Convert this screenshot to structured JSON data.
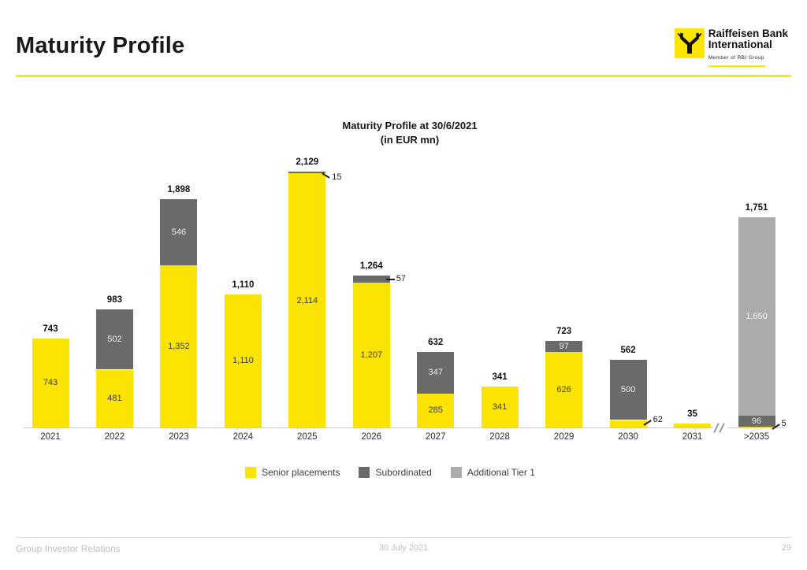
{
  "slide": {
    "title": "Maturity Profile",
    "footer": {
      "left": "Group Investor Relations",
      "center": "30 July 2021",
      "page": "29"
    }
  },
  "logo": {
    "name_line1": "Raiffeisen Bank",
    "name_line2": "International",
    "tagline": "Member of RBI Group"
  },
  "chart_data": {
    "type": "bar",
    "stacked": true,
    "title": "Maturity Profile at 30/6/2021",
    "subtitle": "(in EUR mn)",
    "unit": "EUR mn",
    "grid": false,
    "legend_position": "bottom",
    "ylim": [
      0,
      2129
    ],
    "categories": [
      "2021",
      "2022",
      "2023",
      "2024",
      "2025",
      "2026",
      "2027",
      "2028",
      "2029",
      "2030",
      "2031",
      ">2035"
    ],
    "series": [
      {
        "name": "Senior placements",
        "color": "#FBE303",
        "label_color": "#3c3c3b",
        "values": [
          743,
          481,
          1352,
          1110,
          2114,
          1207,
          285,
          341,
          626,
          62,
          35,
          5
        ],
        "label_modes": [
          "in",
          "in",
          "in",
          "in",
          "in",
          "in",
          "in",
          "in",
          "in",
          "co-up",
          "none",
          "co-up"
        ]
      },
      {
        "name": "Subordinated",
        "color": "#6A6A69",
        "label_color": "#ececec",
        "values": [
          0,
          502,
          546,
          0,
          15,
          57,
          347,
          0,
          97,
          500,
          0,
          96
        ],
        "label_modes": [
          "none",
          "in",
          "in",
          "none",
          "co-down",
          "co-flat",
          "in",
          "none",
          "in",
          "in",
          "none",
          "in"
        ]
      },
      {
        "name": "Additional Tier 1",
        "color": "#ABABAB",
        "label_color": "#f7f7f7",
        "values": [
          0,
          0,
          0,
          0,
          0,
          0,
          0,
          0,
          0,
          0,
          0,
          1650
        ],
        "label_modes": [
          "none",
          "none",
          "none",
          "none",
          "none",
          "none",
          "none",
          "none",
          "none",
          "none",
          "none",
          "in"
        ]
      }
    ],
    "totals": [
      743,
      983,
      1898,
      1110,
      2129,
      1264,
      632,
      341,
      723,
      562,
      35,
      1751
    ],
    "axis_break_between": [
      "2031",
      ">2035"
    ]
  }
}
